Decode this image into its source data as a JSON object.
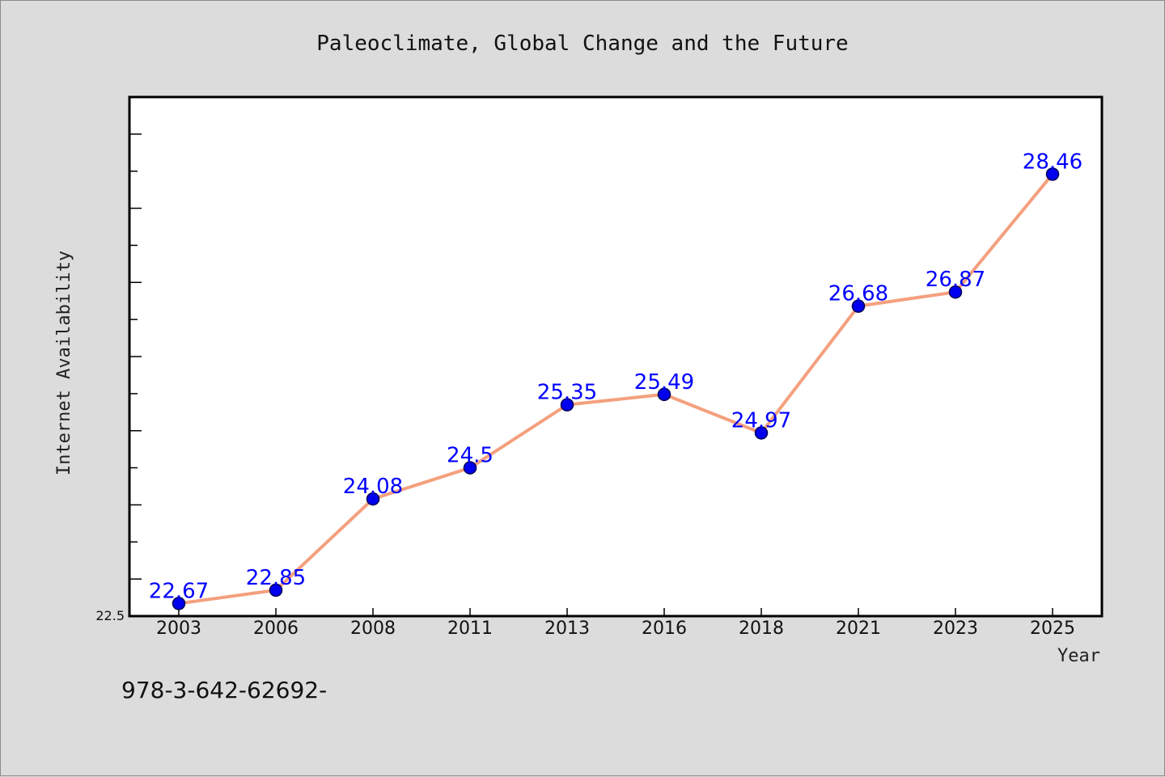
{
  "chart_data": {
    "type": "line",
    "title": "Paleoclimate, Global Change and the Future",
    "xlabel": "Year",
    "ylabel": "Internet Availability",
    "categories": [
      "2003",
      "2006",
      "2008",
      "2011",
      "2013",
      "2016",
      "2018",
      "2021",
      "2023",
      "2025"
    ],
    "series": [
      {
        "values": [
          22.67,
          22.85,
          24.08,
          24.5,
          25.35,
          25.49,
          24.97,
          26.68,
          26.87,
          28.46
        ],
        "data_labels": [
          "22.67",
          "22.85",
          "24.08",
          "24.5",
          "25.35",
          "25.49",
          "24.97",
          "26.68",
          "26.87",
          "28.46"
        ]
      }
    ],
    "ylim": [
      22.5,
      29.5
    ],
    "yticks_labeled": [
      "22.5"
    ],
    "grid": false,
    "legend": "none",
    "colors": {
      "line": "#f4a07e",
      "marker": "#0000ee",
      "marker_edge": "#000055",
      "data_label": "#0000ff",
      "plot_background": "#ffffff",
      "page_background": "#dcdcdc"
    },
    "footnote": "978-3-642-62692-"
  }
}
